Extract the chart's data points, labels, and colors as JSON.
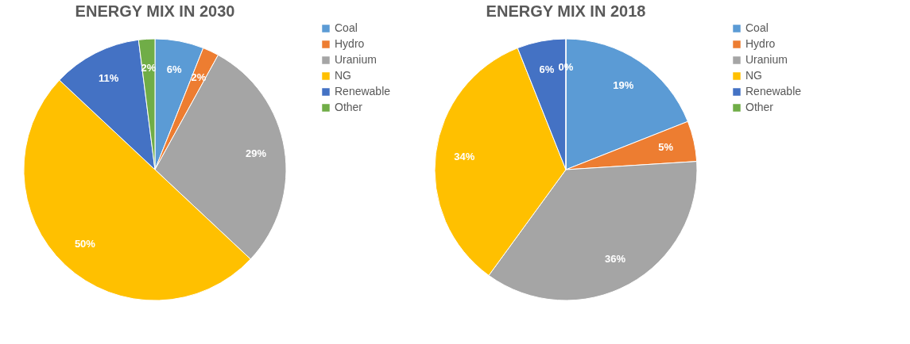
{
  "chart_data": [
    {
      "type": "pie",
      "title": "ENERGY MIX IN 2030",
      "categories": [
        "Coal",
        "Hydro",
        "Uranium",
        "NG",
        "Renewable",
        "Other"
      ],
      "values": [
        6,
        2,
        29,
        50,
        11,
        2
      ],
      "colors": [
        "#5b9bd5",
        "#ed7d31",
        "#a5a5a5",
        "#ffc000",
        "#4472c4",
        "#70ad47"
      ],
      "value_labels": [
        "6%",
        "2%",
        "29%",
        "50%",
        "11%",
        "2%"
      ],
      "legend": "right"
    },
    {
      "type": "pie",
      "title": "ENERGY MIX IN 2018",
      "categories": [
        "Coal",
        "Hydro",
        "Uranium",
        "NG",
        "Renewable",
        "Other"
      ],
      "values": [
        19,
        5,
        36,
        34,
        6,
        0
      ],
      "colors": [
        "#5b9bd5",
        "#ed7d31",
        "#a5a5a5",
        "#ffc000",
        "#4472c4",
        "#70ad47"
      ],
      "value_labels": [
        "19%",
        "5%",
        "36%",
        "34%",
        "6%",
        "0%"
      ],
      "legend": "right"
    }
  ]
}
